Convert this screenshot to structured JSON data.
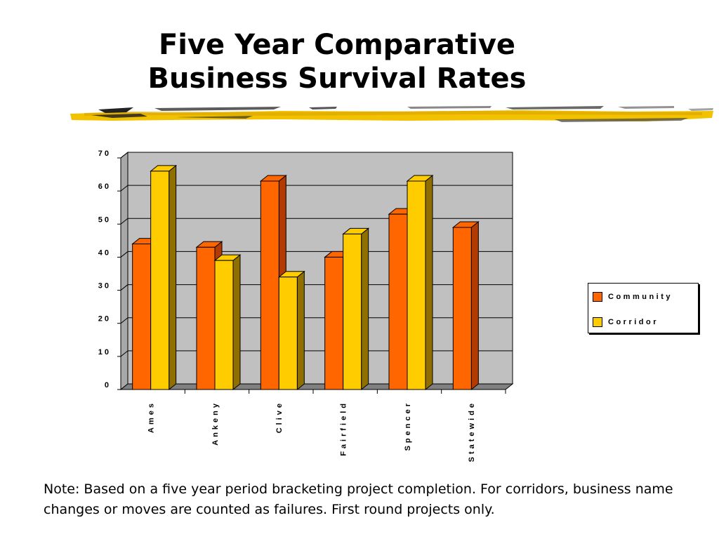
{
  "slide": {
    "title_line1": "Five Year Comparative",
    "title_line2": "Business Survival Rates",
    "note": "Note: Based on a five year period bracketing project completion. For corridors, business name changes or moves are counted as failures. First round projects only."
  },
  "colors": {
    "community": "#ff6600",
    "community_dark": "#b33a00",
    "corridor": "#ffcc00",
    "corridor_dark": "#8f6f00",
    "plot_bg": "#c0c0c0",
    "floor": "#808080",
    "brush": "#f2c200"
  },
  "chart_data": {
    "type": "bar",
    "categories": [
      "Ames",
      "Ankeny",
      "Clive",
      "Fairfield",
      "Spencer",
      "Statewide"
    ],
    "series": [
      {
        "name": "Community",
        "values": [
          44,
          43,
          63,
          40,
          53,
          49
        ]
      },
      {
        "name": "Corridor",
        "values": [
          66,
          39,
          34,
          47,
          63,
          null
        ]
      }
    ],
    "ylim": [
      0,
      70
    ],
    "yticks": [
      "0",
      "10",
      "20",
      "30",
      "40",
      "50",
      "60",
      "70"
    ],
    "grid": true,
    "legend": "right",
    "title": "",
    "xlabel": "",
    "ylabel": ""
  }
}
